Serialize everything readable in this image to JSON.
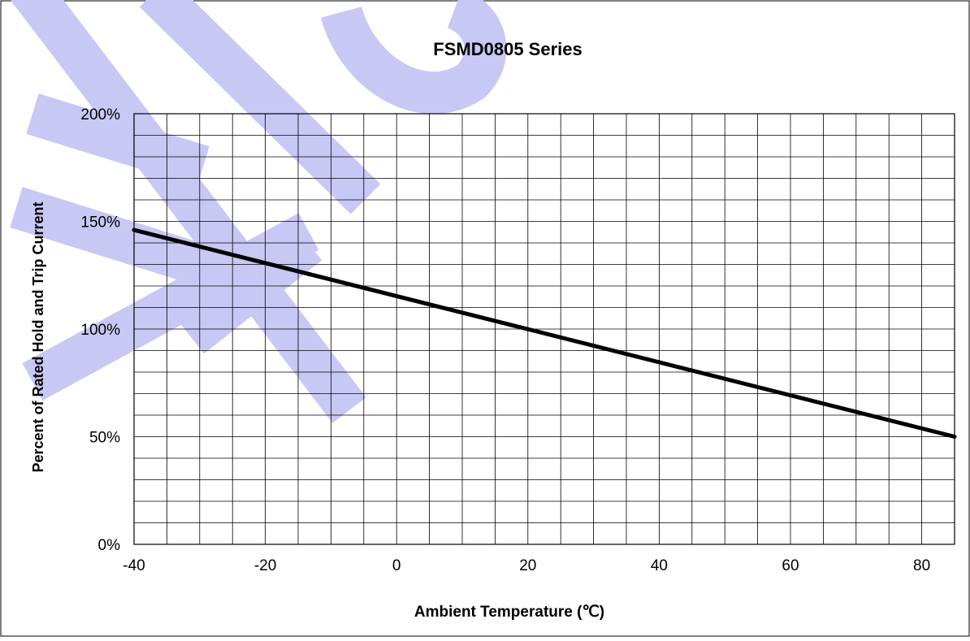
{
  "chart_data": {
    "type": "line",
    "title": "FSMD0805 Series",
    "xlabel": "Ambient Temperature (℃)",
    "ylabel": "Percent of Rated Hold  and Trip Current",
    "xlim": [
      -40,
      85
    ],
    "ylim": [
      0,
      200
    ],
    "x_ticks": [
      -40,
      -20,
      0,
      20,
      40,
      60,
      80
    ],
    "x_tick_labels": [
      "-40",
      "-20",
      "0",
      "20",
      "40",
      "60",
      "80"
    ],
    "y_ticks": [
      0,
      50,
      100,
      150,
      200
    ],
    "y_tick_labels": [
      "0%",
      "50%",
      "100%",
      "150%",
      "200%"
    ],
    "grid": true,
    "x_minor_step": 5,
    "y_minor_step": 10,
    "series": [
      {
        "x": [
          -40,
          85
        ],
        "y": [
          146,
          50
        ]
      }
    ],
    "colors": {
      "line": "#000000",
      "grid": "#000000",
      "watermark": "#c8c8f5"
    }
  }
}
